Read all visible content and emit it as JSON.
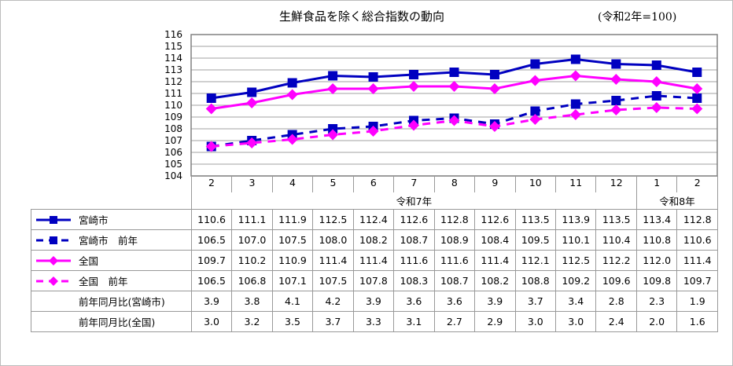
{
  "title": "生鮮食品を除く総合指数の動向",
  "unit_note": "(令和2年=100)",
  "colors": {
    "miyazaki": "#0000c0",
    "national": "#ff00ff",
    "grid": "#999999"
  },
  "chart_data": {
    "type": "line",
    "title": "生鮮食品を除く総合指数の動向",
    "subtitle": "(令和2年=100)",
    "xlabel": "",
    "ylabel": "",
    "ylim": [
      104,
      116
    ],
    "yticks": [
      116,
      115,
      114,
      113,
      112,
      111,
      110,
      109,
      108,
      107,
      106,
      105,
      104
    ],
    "grid": true,
    "legend_position": "table-left",
    "categories": [
      "2",
      "3",
      "4",
      "5",
      "6",
      "7",
      "8",
      "9",
      "10",
      "11",
      "12",
      "1",
      "2"
    ],
    "year_groups": [
      {
        "label": "令和7年",
        "span": 11
      },
      {
        "label": "令和8年",
        "span": 2
      }
    ],
    "series": [
      {
        "name": "宮崎市",
        "style": "solid",
        "marker": "square",
        "color": "#0000c0",
        "values": [
          110.6,
          111.1,
          111.9,
          112.5,
          112.4,
          112.6,
          112.8,
          112.6,
          113.5,
          113.9,
          113.5,
          113.4,
          112.8
        ]
      },
      {
        "name": "宮崎市　前年",
        "style": "dashed",
        "marker": "square",
        "color": "#0000c0",
        "values": [
          106.5,
          107.0,
          107.5,
          108.0,
          108.2,
          108.7,
          108.9,
          108.4,
          109.5,
          110.1,
          110.4,
          110.8,
          110.6
        ]
      },
      {
        "name": "全国",
        "style": "solid",
        "marker": "diamond",
        "color": "#ff00ff",
        "values": [
          109.7,
          110.2,
          110.9,
          111.4,
          111.4,
          111.6,
          111.6,
          111.4,
          112.1,
          112.5,
          112.2,
          112.0,
          111.4
        ]
      },
      {
        "name": "全国　前年",
        "style": "dashed",
        "marker": "diamond",
        "color": "#ff00ff",
        "values": [
          106.5,
          106.8,
          107.1,
          107.5,
          107.8,
          108.3,
          108.7,
          108.2,
          108.8,
          109.2,
          109.6,
          109.8,
          109.7
        ]
      }
    ],
    "extra_rows": [
      {
        "name": "前年同月比(宮崎市)",
        "values": [
          "3.9",
          "3.8",
          "4.1",
          "4.2",
          "3.9",
          "3.6",
          "3.6",
          "3.9",
          "3.7",
          "3.4",
          "2.8",
          "2.3",
          "1.9"
        ]
      },
      {
        "name": "前年同月比(全国)",
        "values": [
          "3.0",
          "3.2",
          "3.5",
          "3.7",
          "3.3",
          "3.1",
          "2.7",
          "2.9",
          "3.0",
          "3.0",
          "2.4",
          "2.0",
          "1.6"
        ]
      }
    ]
  },
  "table": {
    "months": [
      "2",
      "3",
      "4",
      "5",
      "6",
      "7",
      "8",
      "9",
      "10",
      "11",
      "12",
      "1",
      "2"
    ],
    "year_r7": "令和7年",
    "year_r8": "令和8年",
    "rows": [
      {
        "label": "宮崎市",
        "values": [
          "110.6",
          "111.1",
          "111.9",
          "112.5",
          "112.4",
          "112.6",
          "112.8",
          "112.6",
          "113.5",
          "113.9",
          "113.5",
          "113.4",
          "112.8"
        ]
      },
      {
        "label": "宮崎市　前年",
        "values": [
          "106.5",
          "107.0",
          "107.5",
          "108.0",
          "108.2",
          "108.7",
          "108.9",
          "108.4",
          "109.5",
          "110.1",
          "110.4",
          "110.8",
          "110.6"
        ]
      },
      {
        "label": "全国",
        "values": [
          "109.7",
          "110.2",
          "110.9",
          "111.4",
          "111.4",
          "111.6",
          "111.6",
          "111.4",
          "112.1",
          "112.5",
          "112.2",
          "112.0",
          "111.4"
        ]
      },
      {
        "label": "全国　前年",
        "values": [
          "106.5",
          "106.8",
          "107.1",
          "107.5",
          "107.8",
          "108.3",
          "108.7",
          "108.2",
          "108.8",
          "109.2",
          "109.6",
          "109.8",
          "109.7"
        ]
      },
      {
        "label": "前年同月比(宮崎市)",
        "values": [
          "3.9",
          "3.8",
          "4.1",
          "4.2",
          "3.9",
          "3.6",
          "3.6",
          "3.9",
          "3.7",
          "3.4",
          "2.8",
          "2.3",
          "1.9"
        ]
      },
      {
        "label": "前年同月比(全国)",
        "values": [
          "3.0",
          "3.2",
          "3.5",
          "3.7",
          "3.3",
          "3.1",
          "2.7",
          "2.9",
          "3.0",
          "3.0",
          "2.4",
          "2.0",
          "1.6"
        ]
      }
    ]
  }
}
